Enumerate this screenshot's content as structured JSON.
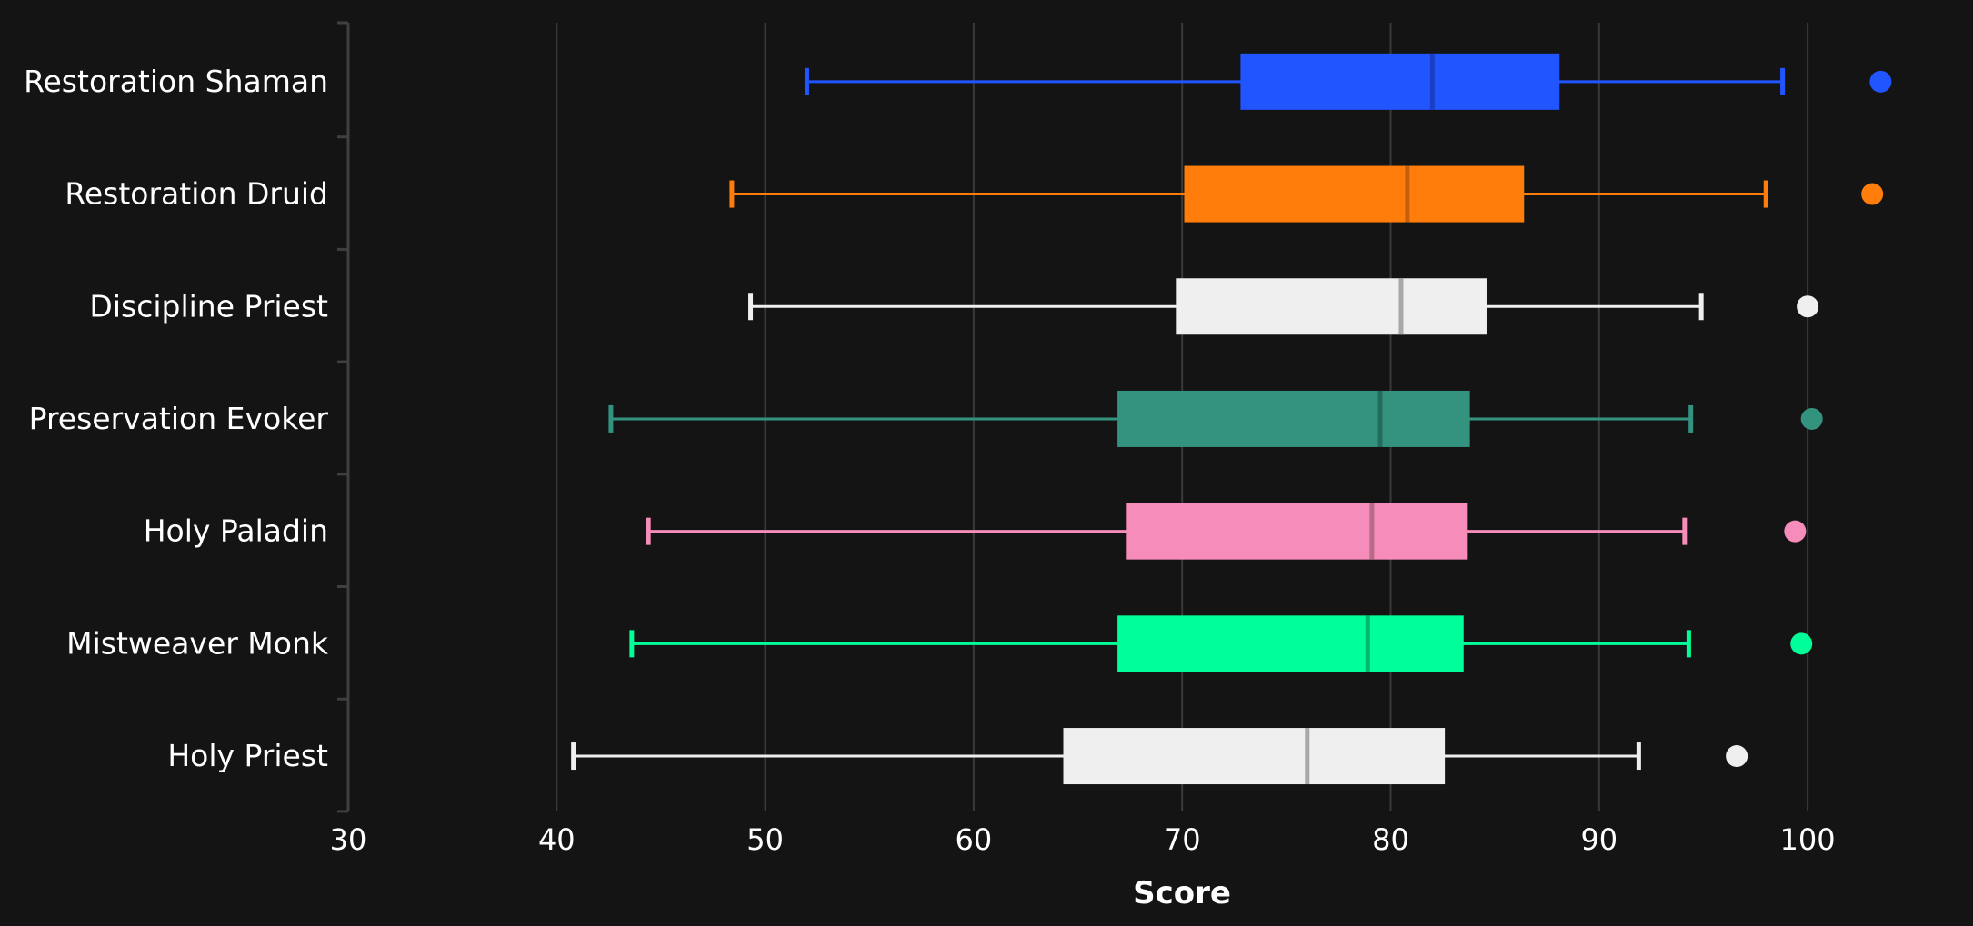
{
  "chart_data": {
    "type": "box",
    "title": "",
    "xlabel": "Score",
    "ylabel": "",
    "xlim": [
      30,
      103.5
    ],
    "xticks": [
      30,
      40,
      50,
      60,
      70,
      80,
      90,
      100
    ],
    "grid": "vertical",
    "background": "#141414",
    "series": [
      {
        "name": "Restoration Shaman",
        "color": "#2155ff",
        "median_color": "#1a3fc4",
        "whisker_low": 52.0,
        "q1": 72.8,
        "median": 82.0,
        "q3": 88.1,
        "whisker_high": 98.8,
        "outlier": 103.5
      },
      {
        "name": "Restoration Druid",
        "color": "#ff7d0a",
        "median_color": "#c4600b",
        "whisker_low": 48.4,
        "q1": 70.1,
        "median": 80.8,
        "q3": 86.4,
        "whisker_high": 98.0,
        "outlier": 103.1
      },
      {
        "name": "Discipline Priest",
        "color": "#efefef",
        "median_color": "#a8a8a8",
        "whisker_low": 49.3,
        "q1": 69.7,
        "median": 80.5,
        "q3": 84.6,
        "whisker_high": 94.9,
        "outlier": 100.0
      },
      {
        "name": "Preservation Evoker",
        "color": "#33937f",
        "median_color": "#236c5c",
        "whisker_low": 42.6,
        "q1": 66.9,
        "median": 79.5,
        "q3": 83.8,
        "whisker_high": 94.4,
        "outlier": 100.2
      },
      {
        "name": "Holy Paladin",
        "color": "#f58cba",
        "median_color": "#b76a8a",
        "whisker_low": 44.4,
        "q1": 67.3,
        "median": 79.1,
        "q3": 83.7,
        "whisker_high": 94.1,
        "outlier": 99.4
      },
      {
        "name": "Mistweaver Monk",
        "color": "#00ff98",
        "median_color": "#06b56e",
        "whisker_low": 43.6,
        "q1": 66.9,
        "median": 78.9,
        "q3": 83.5,
        "whisker_high": 94.3,
        "outlier": 99.7
      },
      {
        "name": "Holy Priest",
        "color": "#efefef",
        "median_color": "#a8a8a8",
        "whisker_low": 40.8,
        "q1": 64.3,
        "median": 76.0,
        "q3": 82.6,
        "whisker_high": 91.9,
        "outlier": 96.6
      }
    ]
  }
}
